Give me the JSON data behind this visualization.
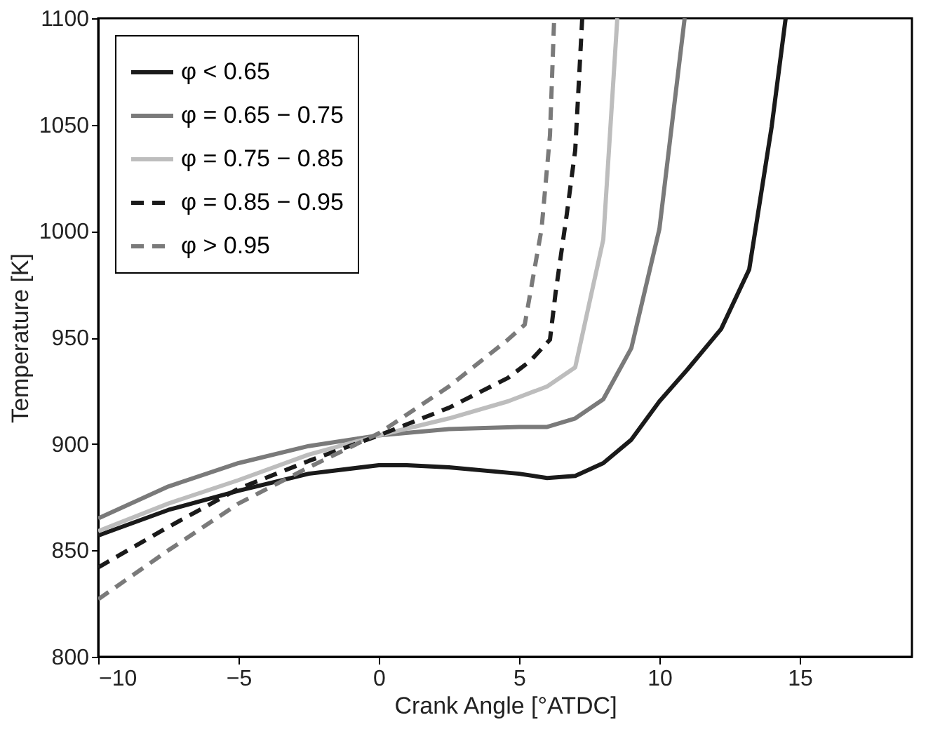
{
  "chart_data": {
    "type": "line",
    "xlabel": "Crank Angle [°ATDC]",
    "ylabel": "Temperature [K]",
    "xlim": [
      -10,
      19
    ],
    "xticks": [
      -10,
      -5,
      0,
      5,
      10,
      15
    ],
    "ylim": [
      800,
      1100
    ],
    "yticks": [
      800,
      850,
      900,
      950,
      1000,
      1050,
      1100
    ],
    "grid": false,
    "legend": "top left",
    "series": [
      {
        "name": "φ < 0.65",
        "color": "#1a1a1a",
        "line_style": "solid",
        "x": [
          -10,
          -7.5,
          -5,
          -2.5,
          0,
          1,
          2.5,
          5,
          6,
          7,
          8,
          9,
          10,
          11,
          12.2,
          13.2,
          14,
          14.5
        ],
        "values": [
          857,
          869,
          878,
          886,
          890,
          890,
          889,
          886,
          884,
          885,
          891,
          902,
          920,
          935,
          954,
          982,
          1049,
          1100
        ]
      },
      {
        "name": "φ = 0.65 − 0.75",
        "color": "#7a7a7a",
        "line_style": "solid",
        "x": [
          -10,
          -7.5,
          -5,
          -2.5,
          0,
          2.5,
          5,
          6,
          7,
          8,
          9,
          10,
          10.9
        ],
        "values": [
          865,
          880,
          891,
          899,
          904,
          907,
          908,
          908,
          912,
          921,
          945,
          1001,
          1100
        ]
      },
      {
        "name": "φ = 0.75 − 0.85",
        "color": "#bdbdbd",
        "line_style": "solid",
        "x": [
          -10,
          -7.5,
          -5,
          -2.5,
          0,
          2.5,
          4.6,
          6,
          7,
          8,
          8.5
        ],
        "values": [
          859,
          872,
          883,
          895,
          904,
          912,
          920,
          927,
          936,
          996,
          1100
        ]
      },
      {
        "name": "φ = 0.85 − 0.95",
        "color": "#1a1a1a",
        "line_style": "dashed",
        "x": [
          -10,
          -7.5,
          -5,
          -2.5,
          0,
          2.5,
          4.6,
          5.4,
          6.1,
          6.3,
          6.7,
          7,
          7.25
        ],
        "values": [
          842,
          861,
          879,
          892,
          904,
          917,
          931,
          939,
          949,
          971,
          1008,
          1038,
          1100
        ]
      },
      {
        "name": "φ > 0.95",
        "color": "#7a7a7a",
        "line_style": "dashed",
        "x": [
          -10,
          -7.5,
          -5,
          -2.5,
          0,
          2.5,
          4.6,
          5.2,
          5.8,
          6.1,
          6.25
        ],
        "values": [
          827,
          850,
          872,
          889,
          905,
          927,
          949,
          956,
          1001,
          1045,
          1100
        ]
      }
    ]
  }
}
